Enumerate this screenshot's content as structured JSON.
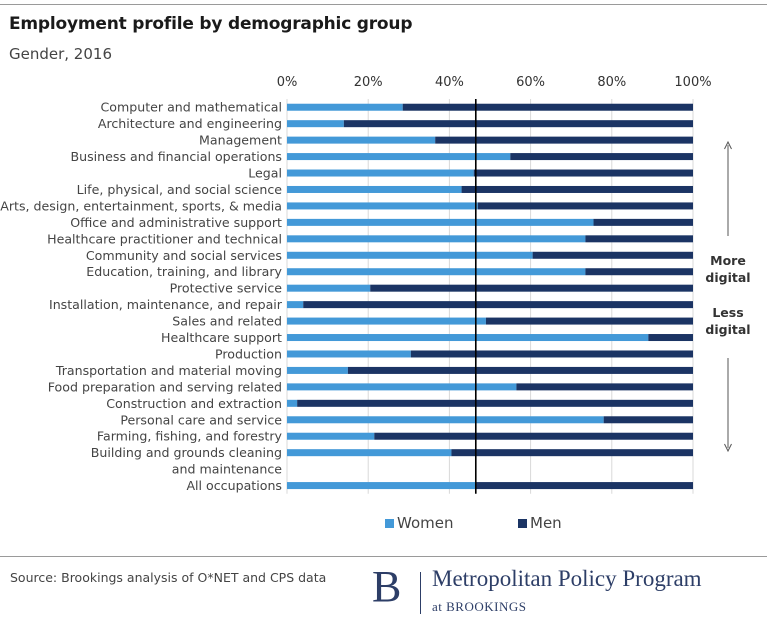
{
  "header": {
    "title": "Employment profile by demographic group",
    "subtitle": "Gender, 2016"
  },
  "annotations": {
    "more_digital_line1": "More",
    "more_digital_line2": "digital",
    "less_digital_line1": "Less",
    "less_digital_line2": "digital"
  },
  "footer": {
    "source": "Source: Brookings analysis of O*NET and CPS data",
    "brand_letter": "B",
    "brand_name": "Metropolitan Policy Program",
    "brand_sub": "at BROOKINGS"
  },
  "colors": {
    "women": "#4399d8",
    "men": "#1b3464",
    "grid": "#d9d9d9",
    "reference_line": "#000000"
  },
  "chart_data": {
    "type": "bar",
    "orientation": "horizontal",
    "stacked": "percent",
    "title": "Employment profile by demographic group",
    "subtitle": "Gender, 2016",
    "xlim": [
      0,
      100
    ],
    "xticks": [
      "0%",
      "20%",
      "40%",
      "60%",
      "80%",
      "100%"
    ],
    "categories": [
      "Computer and mathematical",
      "Architecture and engineering",
      "Management",
      "Business and financial operations",
      "Legal",
      "Life, physical, and social science",
      "Arts, design, entertainment, sports, & media",
      "Office and administrative support",
      "Healthcare practitioner and technical",
      "Community and social services",
      "Education, training, and library",
      "Protective service",
      "Installation, maintenance, and repair",
      "Sales and related",
      "Healthcare support",
      "Production",
      "Transportation and material moving",
      "Food preparation and serving related",
      "Construction and extraction",
      "Personal care and service",
      "Farming, fishing, and forestry",
      "Building and grounds cleaning and maintenance",
      "All occupations"
    ],
    "category_lines": [
      [
        "Computer and mathematical"
      ],
      [
        "Architecture and engineering"
      ],
      [
        "Management"
      ],
      [
        "Business and financial operations"
      ],
      [
        "Legal"
      ],
      [
        "Life, physical, and social science"
      ],
      [
        "Arts, design, entertainment, sports, & media"
      ],
      [
        "Office and administrative support"
      ],
      [
        "Healthcare practitioner and technical"
      ],
      [
        "Community and social services"
      ],
      [
        "Education, training, and library"
      ],
      [
        "Protective service"
      ],
      [
        "Installation, maintenance, and repair"
      ],
      [
        "Sales and related"
      ],
      [
        "Healthcare support"
      ],
      [
        "Production"
      ],
      [
        "Transportation and material moving"
      ],
      [
        "Food preparation and serving related"
      ],
      [
        "Construction and extraction"
      ],
      [
        "Personal care and service"
      ],
      [
        "Farming, fishing, and forestry"
      ],
      [
        "Building and grounds cleaning",
        "and maintenance"
      ],
      [
        "All occupations"
      ]
    ],
    "series": [
      {
        "name": "Women",
        "values": [
          28.5,
          14,
          36.5,
          55,
          46,
          43,
          47,
          75.5,
          73.5,
          60.5,
          73.5,
          20.5,
          4,
          49,
          89,
          30.5,
          15,
          56.5,
          2.5,
          78,
          21.5,
          40.5,
          46.5
        ]
      },
      {
        "name": "Men",
        "values": [
          71.5,
          86,
          63.5,
          45,
          54,
          57,
          53,
          24.5,
          26.5,
          39.5,
          26.5,
          79.5,
          96,
          51,
          11,
          69.5,
          85,
          43.5,
          97.5,
          22,
          78.5,
          59.5,
          53.5
        ]
      }
    ],
    "reference_line": {
      "label": "All occupations women share",
      "value": 46.5
    },
    "legend": [
      "Women",
      "Men"
    ],
    "legend_position": "bottom"
  }
}
